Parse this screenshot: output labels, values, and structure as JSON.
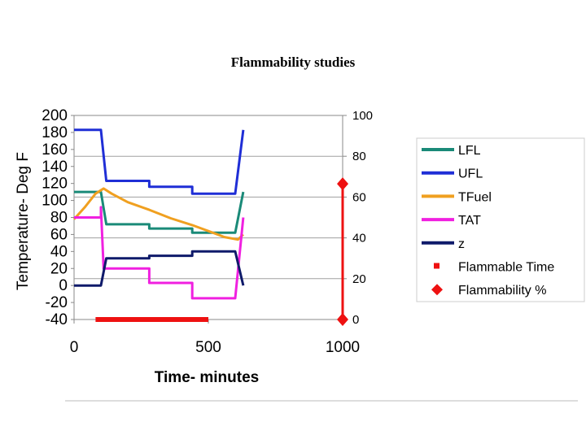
{
  "chart_data": {
    "type": "line",
    "title": "Flammability studies",
    "xlabel": "Time- minutes",
    "ylabel": "Temperature- Deg F",
    "xlim": [
      0,
      1000
    ],
    "ylim": [
      -40,
      200
    ],
    "y2lim": [
      0,
      100
    ],
    "x_ticks": [
      "0",
      "500",
      "1000"
    ],
    "y_ticks": [
      "200",
      "180",
      "160",
      "140",
      "120",
      "100",
      "80",
      "60",
      "40",
      "20",
      "0",
      "-20",
      "-40"
    ],
    "y2_ticks": [
      "100",
      "80",
      "60",
      "40",
      "20",
      "0"
    ],
    "grid": "horizontal",
    "legend_position": "right",
    "series": [
      {
        "name": "LFL",
        "color": "#1a8a78",
        "axis": "left",
        "x": [
          0,
          100,
          120,
          280,
          280,
          440,
          440,
          600,
          630
        ],
        "y": [
          110,
          110,
          72,
          72,
          67,
          67,
          62,
          62,
          110
        ]
      },
      {
        "name": "UFL",
        "color": "#1f2ed6",
        "axis": "left",
        "x": [
          0,
          100,
          120,
          280,
          280,
          440,
          440,
          600,
          630
        ],
        "y": [
          183,
          183,
          123,
          123,
          116,
          116,
          108,
          108,
          183
        ]
      },
      {
        "name": "TFuel",
        "color": "#f0a020",
        "axis": "left",
        "x": [
          0,
          40,
          80,
          110,
          140,
          200,
          280,
          360,
          440,
          500,
          560,
          610,
          630
        ],
        "y": [
          78,
          92,
          108,
          114,
          108,
          98,
          89,
          79,
          71,
          64,
          57,
          54,
          60
        ]
      },
      {
        "name": "TAT",
        "color": "#f020e0",
        "axis": "left",
        "x": [
          0,
          100,
          100,
          110,
          280,
          280,
          440,
          440,
          600,
          630
        ],
        "y": [
          80,
          80,
          92,
          20,
          20,
          3,
          3,
          -15,
          -15,
          80
        ]
      },
      {
        "name": "z",
        "color": "#0f1a6a",
        "axis": "left",
        "x": [
          0,
          100,
          120,
          280,
          280,
          440,
          440,
          600,
          630
        ],
        "y": [
          0,
          0,
          32,
          32,
          35,
          35,
          40,
          40,
          0
        ]
      },
      {
        "name": "Flammable Time",
        "color": "#ee1111",
        "axis": "right",
        "marker": "square",
        "x": [
          80,
          500
        ],
        "y": [
          0,
          0
        ]
      },
      {
        "name": "Flammability %",
        "color": "#ee1111",
        "axis": "right",
        "marker": "diamond",
        "x": [
          1000,
          1000
        ],
        "y": [
          0,
          66.5
        ]
      }
    ]
  }
}
